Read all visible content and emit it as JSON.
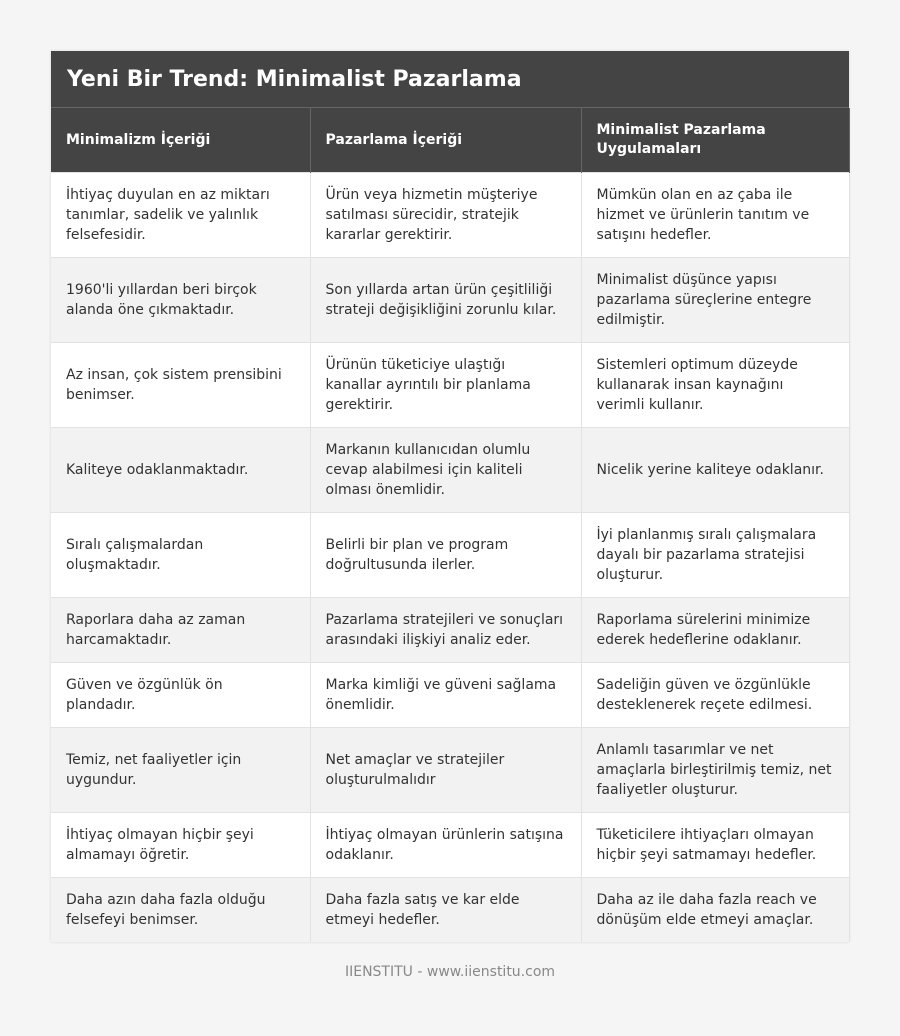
{
  "header": {
    "title": "Yeni Bir Trend: Minimalist Pazarlama"
  },
  "table": {
    "columns": [
      "Minimalizm İçeriği",
      "Pazarlama İçeriği",
      "Minimalist Pazarlama Uygulamaları"
    ],
    "rows": [
      [
        "İhtiyaç duyulan en az miktarı tanımlar, sadelik ve yalınlık felsefesidir.",
        "Ürün veya hizmetin müşteriye satılması sürecidir, stratejik kararlar gerektirir.",
        "Mümkün olan en az çaba ile hizmet ve ürünlerin tanıtım ve satışını hedefler."
      ],
      [
        "1960'li yıllardan beri birçok alanda öne çıkmaktadır.",
        "Son yıllarda artan ürün çeşitliliği strateji değişikliğini zorunlu kılar.",
        "Minimalist düşünce yapısı pazarlama süreçlerine entegre edilmiştir."
      ],
      [
        "Az insan, çok sistem prensibini benimser.",
        "Ürünün tüketiciye ulaştığı kanallar ayrıntılı bir planlama gerektirir.",
        "Sistemleri optimum düzeyde kullanarak insan kaynağını verimli kullanır."
      ],
      [
        "Kaliteye odaklanmaktadır.",
        "Markanın kullanıcıdan olumlu cevap alabilmesi için kaliteli olması önemlidir.",
        "Nicelik yerine kaliteye odaklanır."
      ],
      [
        "Sıralı çalışmalardan oluşmaktadır.",
        "Belirli bir plan ve program doğrultusunda ilerler.",
        "İyi planlanmış sıralı çalışmalara dayalı bir pazarlama stratejisi oluşturur."
      ],
      [
        "Raporlara daha az zaman harcamaktadır.",
        "Pazarlama stratejileri ve sonuçları arasındaki ilişkiyi analiz eder.",
        "Raporlama sürelerini minimize ederek hedeflerine odaklanır."
      ],
      [
        "Güven ve özgünlük ön plandadır.",
        "Marka kimliği ve güveni sağlama önemlidir.",
        "Sadeliğin güven ve özgünlükle desteklenerek reçete edilmesi."
      ],
      [
        "Temiz, net faaliyetler için uygundur.",
        "Net amaçlar ve stratejiler oluşturulmalıdır",
        "Anlamlı tasarımlar ve net amaçlarla birleştirilmiş temiz, net faaliyetler oluşturur."
      ],
      [
        "İhtiyaç olmayan hiçbir şeyi almamayı öğretir.",
        "İhtiyaç olmayan ürünlerin satışına odaklanır.",
        "Tüketicilere ihtiyaçları olmayan hiçbir şeyi satmamayı hedefler."
      ],
      [
        "Daha azın daha fazla olduğu felsefeyi benimser.",
        "Daha fazla satış ve kar elde etmeyi hedefler.",
        "Daha az ile daha fazla reach ve dönüşüm elde etmeyi amaçlar."
      ]
    ]
  },
  "footer": "IIENSTITU - www.iienstitu.com"
}
